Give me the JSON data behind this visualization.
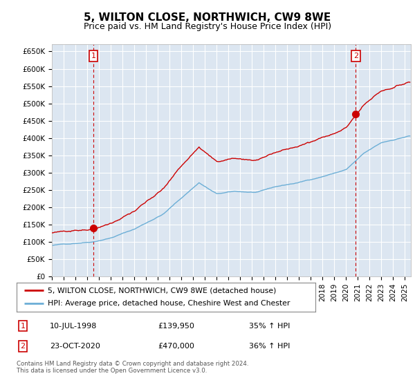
{
  "title": "5, WILTON CLOSE, NORTHWICH, CW9 8WE",
  "subtitle": "Price paid vs. HM Land Registry's House Price Index (HPI)",
  "ylim": [
    0,
    670000
  ],
  "xlim_start": 1995.0,
  "xlim_end": 2025.5,
  "plot_bg_color": "#dce6f1",
  "grid_color": "#ffffff",
  "sale1_date": 1998.53,
  "sale1_price": 139950,
  "sale2_date": 2020.81,
  "sale2_price": 470000,
  "red_line_color": "#cc0000",
  "blue_line_color": "#6baed6",
  "legend_red_label": "5, WILTON CLOSE, NORTHWICH, CW9 8WE (detached house)",
  "legend_blue_label": "HPI: Average price, detached house, Cheshire West and Chester",
  "table_row1": [
    "1",
    "10-JUL-1998",
    "£139,950",
    "35% ↑ HPI"
  ],
  "table_row2": [
    "2",
    "23-OCT-2020",
    "£470,000",
    "36% ↑ HPI"
  ],
  "footer": "Contains HM Land Registry data © Crown copyright and database right 2024.\nThis data is licensed under the Open Government Licence v3.0.",
  "ytick_labels": [
    "£0",
    "£50K",
    "£100K",
    "£150K",
    "£200K",
    "£250K",
    "£300K",
    "£350K",
    "£400K",
    "£450K",
    "£500K",
    "£550K",
    "£600K",
    "£650K"
  ],
  "yticks": [
    0,
    50000,
    100000,
    150000,
    200000,
    250000,
    300000,
    350000,
    400000,
    450000,
    500000,
    550000,
    600000,
    650000
  ],
  "annotation_color": "#cc0000"
}
